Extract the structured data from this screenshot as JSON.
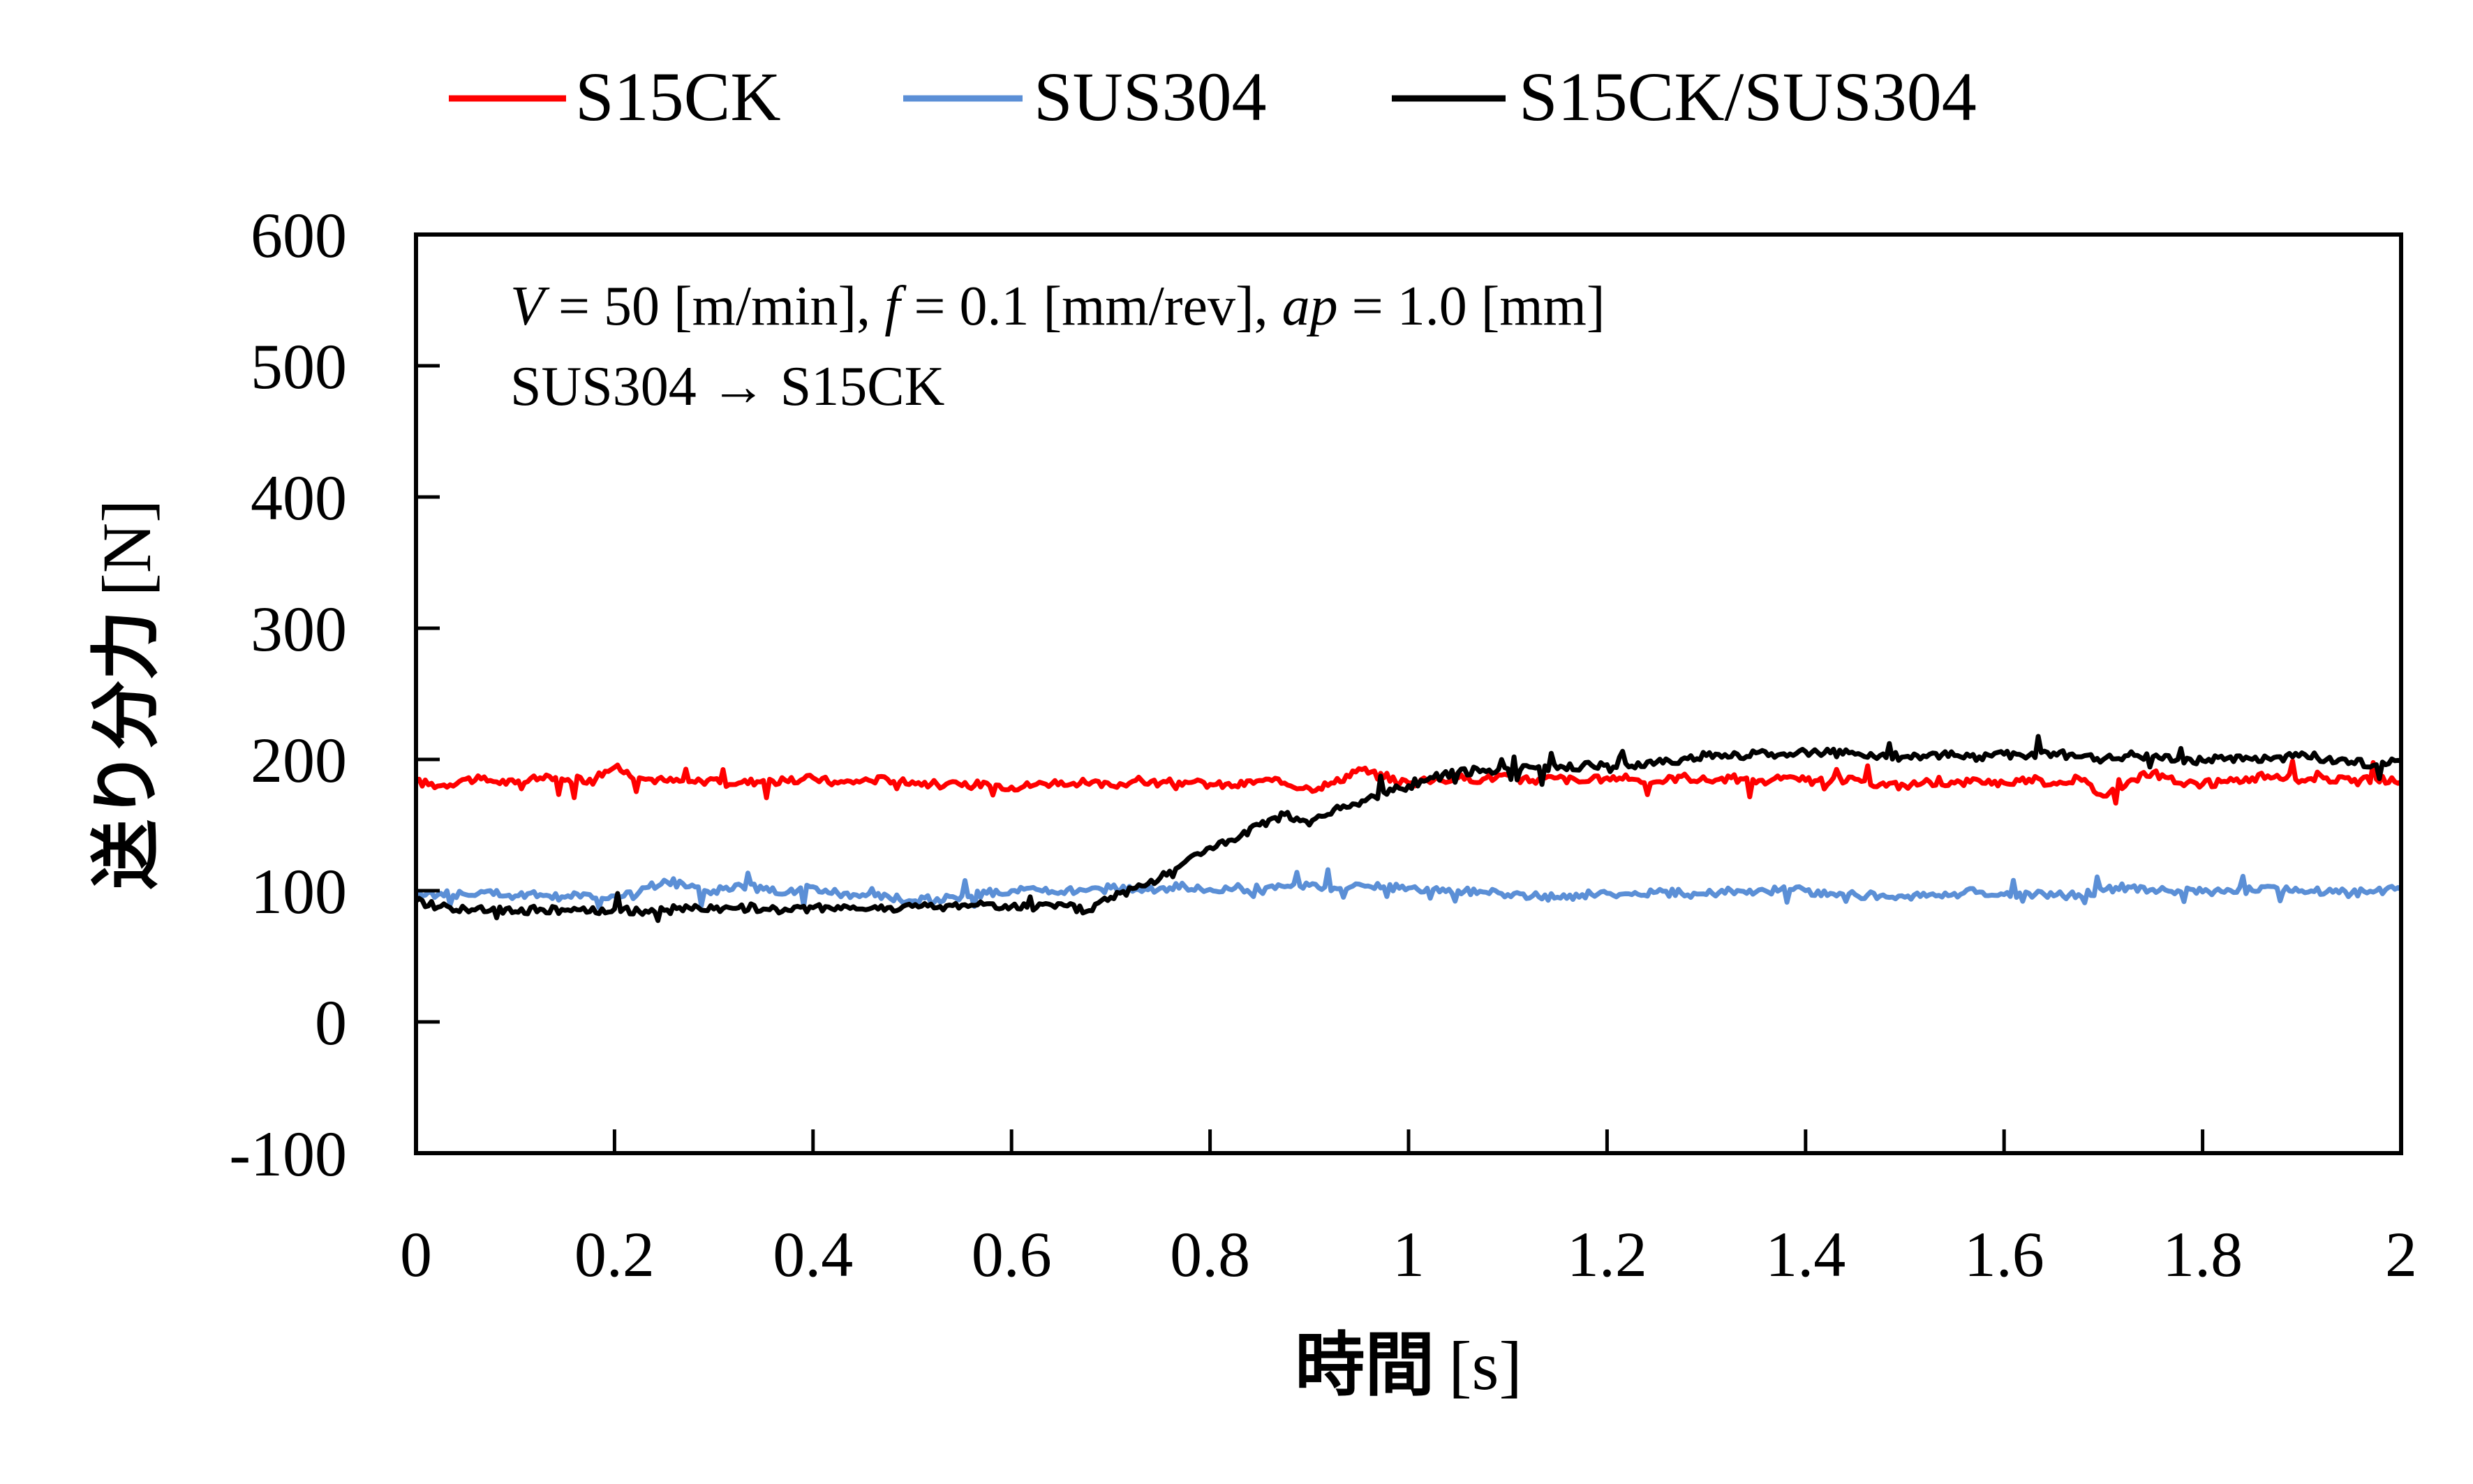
{
  "chart_data": {
    "type": "line",
    "title": "",
    "xlabel_jp": "時間",
    "xlabel_unit": "[s]",
    "ylabel_jp": "送り分力",
    "ylabel_unit": "[N]",
    "xlim": [
      0,
      2
    ],
    "ylim": [
      -100,
      600
    ],
    "xticks": [
      "0",
      "0.2",
      "0.4",
      "0.6",
      "0.8",
      "1",
      "1.2",
      "1.4",
      "1.6",
      "1.8",
      "2"
    ],
    "xtick_values": [
      0,
      0.2,
      0.4,
      0.6,
      0.8,
      1.0,
      1.2,
      1.4,
      1.6,
      1.8,
      2.0
    ],
    "yticks": [
      "-100",
      "0",
      "100",
      "200",
      "300",
      "400",
      "500",
      "600"
    ],
    "ytick_values": [
      -100,
      0,
      100,
      200,
      300,
      400,
      500,
      600
    ],
    "grid": false,
    "legend_position": "top",
    "annotation": {
      "V_sym": "V",
      "V_text": " = 50 [m/min], ",
      "f_sym": "f",
      "f_text": " = 0.1 [mm/rev], ",
      "ap_sym": "ap",
      "ap_text": " = 1.0 [mm]",
      "line2": "SUS304 → S15CK"
    },
    "x_start": 0,
    "x_step": 0.025,
    "series": [
      {
        "name": "S15CK",
        "color": "#ff0000",
        "values": [
          183,
          180,
          185,
          184,
          182,
          186,
          184,
          185,
          194,
          186,
          184,
          183,
          185,
          182,
          184,
          183,
          186,
          182,
          184,
          185,
          183,
          181,
          180,
          182,
          179,
          181,
          183,
          182,
          180,
          184,
          182,
          183,
          181,
          180,
          184,
          182,
          178,
          182,
          193,
          186,
          182,
          184,
          186,
          185,
          188,
          184,
          186,
          183,
          186,
          185,
          183,
          187,
          184,
          186,
          182,
          185,
          184,
          183,
          185,
          181,
          180,
          183,
          182,
          184,
          182,
          185,
          182,
          186,
          172,
          183,
          190,
          182,
          181,
          183,
          186,
          188,
          184,
          186,
          183,
          185,
          183
        ]
      },
      {
        "name": "SUS304",
        "color": "#5b8fd6",
        "values": [
          96,
          98,
          97,
          100,
          96,
          97,
          95,
          97,
          96,
          99,
          108,
          103,
          100,
          105,
          101,
          99,
          103,
          98,
          97,
          96,
          92,
          94,
          96,
          98,
          100,
          101,
          99,
          100,
          102,
          101,
          102,
          103,
          101,
          102,
          100,
          103,
          104,
          102,
          105,
          103,
          102,
          101,
          100,
          99,
          97,
          96,
          95,
          97,
          98,
          97,
          99,
          98,
          97,
          100,
          99,
          101,
          100,
          98,
          97,
          96,
          95,
          97,
          98,
          99,
          97,
          98,
          96,
          97,
          100,
          103,
          101,
          100,
          99,
          101,
          100,
          102,
          100,
          99,
          98,
          100,
          101
        ]
      },
      {
        "name": "S15CK/SUS304",
        "color": "#000000",
        "values": [
          92,
          88,
          86,
          85,
          84,
          86,
          85,
          84,
          86,
          84,
          85,
          87,
          86,
          87,
          86,
          85,
          87,
          88,
          86,
          87,
          88,
          87,
          89,
          90,
          88,
          87,
          90,
          84,
          95,
          102,
          110,
          122,
          133,
          138,
          150,
          158,
          150,
          162,
          165,
          175,
          180,
          186,
          190,
          192,
          193,
          194,
          193,
          195,
          196,
          195,
          198,
          200,
          203,
          202,
          205,
          204,
          206,
          205,
          204,
          203,
          202,
          204,
          203,
          202,
          204,
          203,
          205,
          202,
          200,
          203,
          202,
          200,
          199,
          201,
          200,
          202,
          205,
          200,
          198,
          196,
          199
        ]
      }
    ]
  }
}
